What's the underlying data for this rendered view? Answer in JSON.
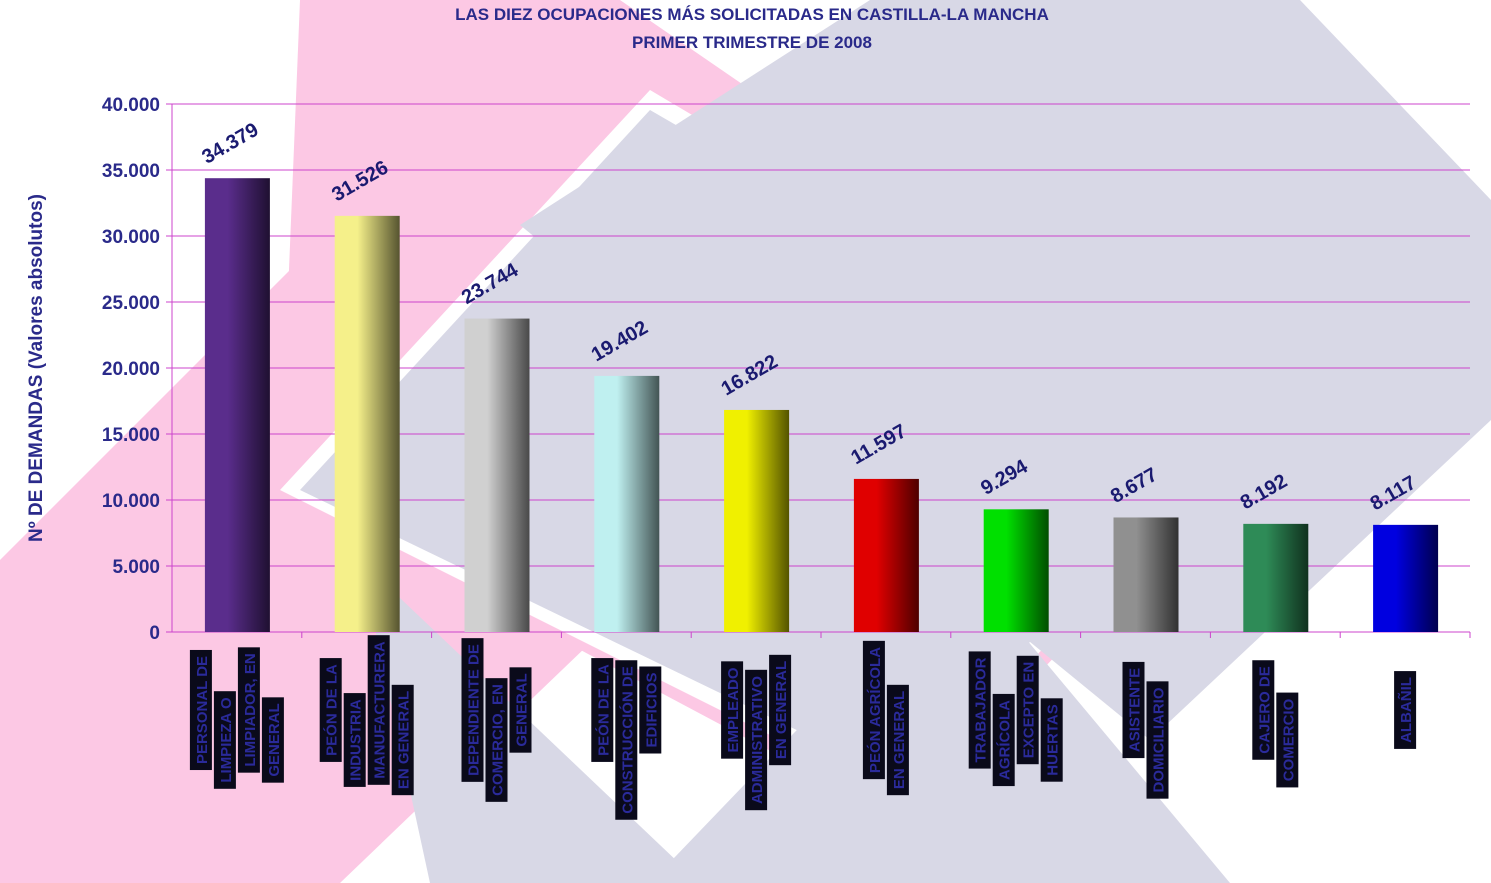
{
  "chart_data": {
    "type": "bar",
    "title": "LAS DIEZ OCUPACIONES MÁS SOLICITADAS EN CASTILLA-LA MANCHA",
    "subtitle": "PRIMER TRIMESTRE DE 2008",
    "y_label": "Nº DE DEMANDAS (Valores absolutos)",
    "categories": [
      [
        "PERSONAL DE",
        "LIMPIEZA O",
        "LIMPIADOR, EN",
        "GENERAL"
      ],
      [
        "PEÓN DE LA",
        "INDUSTRIA",
        "MANUFACTURERA",
        "EN GENERAL"
      ],
      [
        "DEPENDIENTE DE",
        "COMERCIO, EN",
        "GENERAL"
      ],
      [
        "PEÓN DE LA",
        "CONSTRUCCIÓN DE",
        "EDIFICIOS"
      ],
      [
        "EMPLEADO",
        "ADMINISTRATIVO",
        "EN GENERAL"
      ],
      [
        "PEÓN AGRÍCOLA",
        "EN GENERAL"
      ],
      [
        "TRABAJADOR",
        "AGRÍCOLA",
        "EXCEPTO EN",
        "HUERTAS"
      ],
      [
        "ASISTENTE",
        "DOMICILIARIO"
      ],
      [
        "CAJERO DE",
        "COMERCIO"
      ],
      [
        "ALBAÑIL"
      ]
    ],
    "values": [
      34379,
      31526,
      23744,
      19402,
      16822,
      11597,
      9294,
      8677,
      8192,
      8117
    ],
    "value_labels": [
      "34.379",
      "31.526",
      "23.744",
      "19.402",
      "16.822",
      "11.597",
      "9.294",
      "8.677",
      "8.192",
      "8.117"
    ],
    "colors": [
      "#5a2d8c",
      "#f5f08a",
      "#d0d0d0",
      "#bff0f0",
      "#f0f000",
      "#e00000",
      "#00e000",
      "#909090",
      "#2e8b57",
      "#0000e0"
    ],
    "ylim": [
      0,
      40000
    ],
    "yticks": [
      0,
      {
        "value": 5000,
        "label": "5.000"
      },
      {
        "value": 10000,
        "label": "10.000"
      },
      {
        "value": 15000,
        "label": "15.000"
      },
      {
        "value": 20000,
        "label": "20.000"
      },
      {
        "value": 25000,
        "label": "25.000"
      },
      {
        "value": 30000,
        "label": "30.000"
      },
      {
        "value": 35000,
        "label": "35.000"
      },
      {
        "value": 40000,
        "label": "40.000"
      }
    ],
    "grid": true
  }
}
